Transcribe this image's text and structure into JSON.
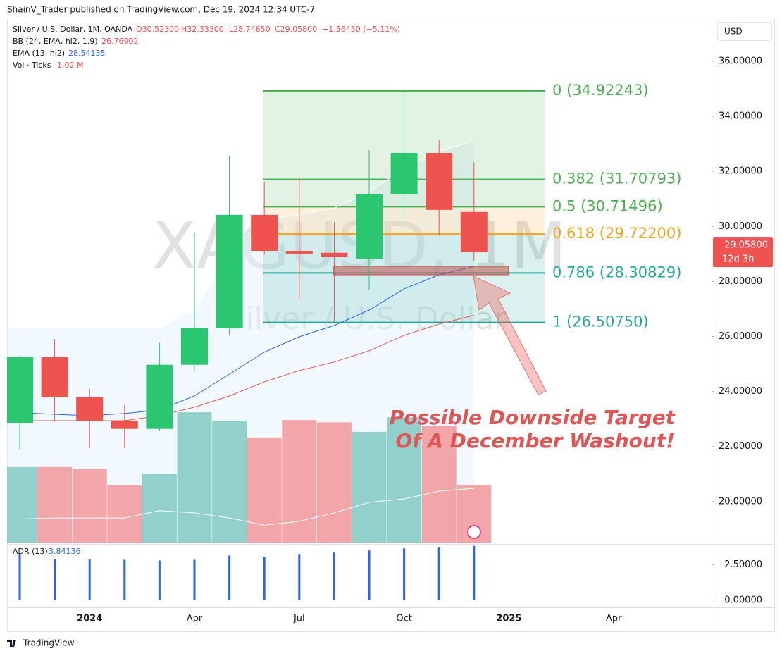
{
  "header": {
    "publisher": "ShainV_Trader published on TradingView.com, Dec 19, 2024 12:34 UTC-7"
  },
  "toolbar": {
    "currency": "USD"
  },
  "footer": {
    "brand": "TradingView"
  },
  "chart_data": {
    "type": "candlestick",
    "title": "Silver / U.S. Dollar, 1M, OANDA",
    "ohlc_labels": {
      "open": "O30.52300",
      "high": "H32.33300",
      "low": "L28.74650",
      "close": "C29.05800",
      "change": "−1.56450 (−5.11%)"
    },
    "watermark": [
      "XAGUSD, 1M",
      "Silver / U.S. Dollar"
    ],
    "categories": [
      null,
      null,
      "2024",
      null,
      null,
      "Apr",
      null,
      null,
      "Jul",
      null,
      null,
      "Oct",
      null,
      null,
      "2025",
      null,
      null,
      "Apr"
    ],
    "open": [
      22.84,
      25.25,
      23.79,
      22.94,
      22.64,
      24.97,
      26.3,
      30.42,
      29.11,
      29.04,
      28.81,
      31.16,
      32.67,
      30.523,
      null,
      null,
      null,
      null
    ],
    "high": [
      25.3,
      25.91,
      24.1,
      23.51,
      25.76,
      29.78,
      32.57,
      31.62,
      31.78,
      30.16,
      32.77,
      34.9,
      33.13,
      32.333,
      null,
      null,
      null,
      null
    ],
    "low": [
      21.89,
      22.9,
      21.94,
      21.94,
      22.56,
      24.74,
      26.04,
      28.97,
      27.35,
      26.5,
      27.71,
      30.21,
      29.68,
      28.7465,
      null,
      null,
      null,
      null
    ],
    "close": [
      25.25,
      23.79,
      22.92,
      22.64,
      24.97,
      26.3,
      30.42,
      29.11,
      29.01,
      28.88,
      31.16,
      32.67,
      30.6,
      29.058,
      null,
      null,
      null,
      null
    ],
    "up_color": "#2ac770",
    "down_color": "#ef5350",
    "ylim": [
      18.51,
      37.51
    ],
    "yticks": [
      {
        "value": 20,
        "label": "20.00000"
      },
      {
        "value": 22,
        "label": "22.00000"
      },
      {
        "value": 24,
        "label": "24.00000"
      },
      {
        "value": 26,
        "label": "26.00000"
      },
      {
        "value": 28,
        "label": "28.00000"
      },
      {
        "value": 30,
        "label": "30.00000"
      },
      {
        "value": 32,
        "label": "32.00000"
      },
      {
        "value": 34,
        "label": "34.00000"
      },
      {
        "value": 36,
        "label": "36.00000"
      }
    ],
    "bb": {
      "name": "BB (24, EMA, hl2, 1.9)",
      "value_label": "26.76902",
      "color": "#ef5350",
      "band_color": "#e3f2fd",
      "basis": [
        22.94,
        22.94,
        22.94,
        22.94,
        23.12,
        23.43,
        23.84,
        24.35,
        24.76,
        25.07,
        25.48,
        26.04,
        26.45,
        26.76902,
        null,
        null,
        null,
        null
      ],
      "upper": [
        26.32,
        26.32,
        26.32,
        26.32,
        26.32,
        26.96,
        29.01,
        30.29,
        30.42,
        30.67,
        31.26,
        32.08,
        32.72,
        33.11,
        null,
        null,
        null,
        null
      ]
    },
    "ema": {
      "name": "EMA (13, hl2)",
      "value_label": "28.54135",
      "color": "#2962ff",
      "values": [
        23.23,
        23.17,
        23.12,
        23.2,
        23.33,
        23.84,
        24.63,
        25.43,
        25.99,
        26.4,
        26.96,
        27.73,
        28.24,
        28.54135,
        null,
        null,
        null,
        null
      ]
    },
    "volume": {
      "name": "Vol · Ticks",
      "value_label": "1.02 M",
      "ylim": [
        0,
        9.35
      ],
      "up_color": "#92d0cc",
      "down_color": "#f2a6a9",
      "values": [
        1.35,
        1.35,
        1.31,
        1.03,
        1.23,
        2.33,
        2.18,
        1.88,
        2.19,
        2.15,
        1.98,
        2.24,
        2.08,
        1.02,
        null,
        null,
        null,
        null
      ],
      "ma": [
        0.42,
        0.44,
        0.44,
        0.44,
        0.57,
        0.53,
        0.44,
        0.31,
        0.38,
        0.53,
        0.72,
        0.78,
        0.92,
        0.97,
        null,
        null,
        null,
        null
      ]
    },
    "fib": [
      {
        "value": 34.92243,
        "label": "0 (34.92243)",
        "color": "#4caf50"
      },
      {
        "value": 31.70793,
        "label": "0.382 (31.70793)",
        "color": "#4caf50"
      },
      {
        "value": 30.71496,
        "label": "0.5 (30.71496)",
        "color": "#4caf50"
      },
      {
        "value": 29.722,
        "label": "0.618 (29.72200)",
        "color": "#f7a21b"
      },
      {
        "value": 28.30829,
        "label": "0.786 (28.30829)",
        "color": "#22ab94"
      },
      {
        "value": 26.5075,
        "label": "1 (26.50750)",
        "color": "#22ab94"
      }
    ],
    "target_zone": [
      28.55,
      28.24
    ],
    "annotation": [
      "Possible Downside Target",
      "Of A December Washout!"
    ],
    "annotation_color": "#e05555",
    "last_price": {
      "value": 29.058,
      "label": "29.05800",
      "countdown": "12d 3h"
    },
    "adr": {
      "name": "ADR (13)",
      "value_label": "3.84136",
      "color": "#2962ff",
      "ylim": [
        -0.51,
        3.93
      ],
      "yticks": [
        {
          "value": 0,
          "label": "0.00000"
        },
        {
          "value": 2.5,
          "label": "2.50000"
        }
      ],
      "values": [
        3.32,
        2.91,
        2.91,
        2.86,
        2.81,
        2.86,
        3.16,
        3.06,
        3.27,
        3.37,
        3.52,
        3.67,
        3.72,
        3.84136,
        null,
        null,
        null,
        null
      ]
    }
  }
}
